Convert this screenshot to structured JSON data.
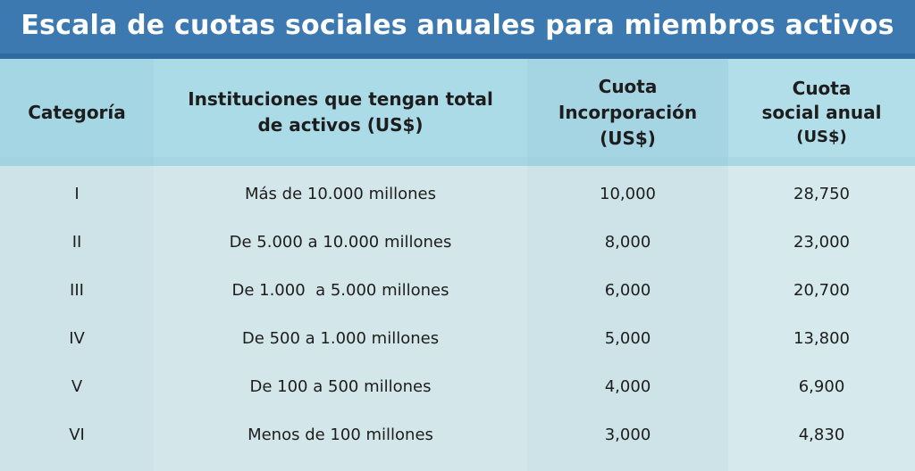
{
  "title": "Escala de cuotas sociales anuales para miembros activos",
  "headers": {
    "categoria": "Categoría",
    "instituciones_line1": "Instituciones que tengan total",
    "instituciones_line2": "de activos (US$)",
    "cuota_inc_line1": "Cuota",
    "cuota_inc_line2": "Incorporación",
    "cuota_inc_line3": "(US$)",
    "cuota_anual_line1": "Cuota",
    "cuota_anual_line2": "social anual",
    "cuota_anual_line3": "(US$)"
  },
  "rows": [
    {
      "categoria": "I",
      "activos": "Más de 10.000 millones",
      "incorporacion": "10,000",
      "anual": "28,750"
    },
    {
      "categoria": "II",
      "activos": "De 5.000 a 10.000 millones",
      "incorporacion": "8,000",
      "anual": "23,000"
    },
    {
      "categoria": "III",
      "activos": "De 1.000  a 5.000 millones",
      "incorporacion": "6,000",
      "anual": "20,700"
    },
    {
      "categoria": "IV",
      "activos": "De 500 a 1.000 millones",
      "incorporacion": "5,000",
      "anual": "13,800"
    },
    {
      "categoria": "V",
      "activos": "De 100 a 500 millones",
      "incorporacion": "4,000",
      "anual": "6,900"
    },
    {
      "categoria": "VI",
      "activos": "Menos de 100 millones",
      "incorporacion": "3,000",
      "anual": "4,830"
    }
  ]
}
